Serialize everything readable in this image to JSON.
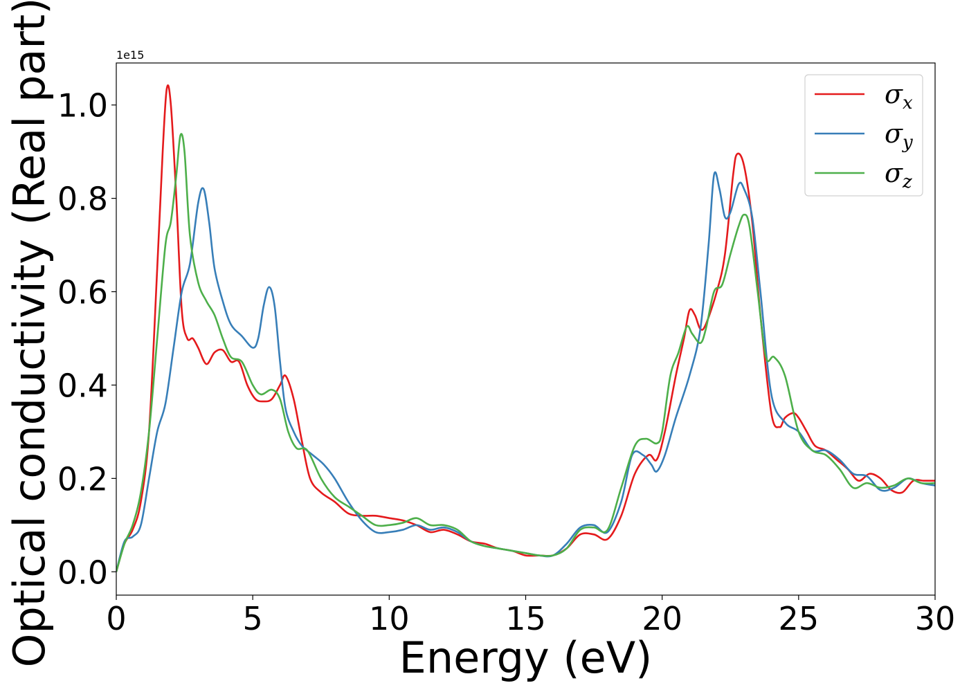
{
  "chart_data": {
    "type": "line",
    "title": "",
    "xlabel": "Energy (eV)",
    "ylabel": "Optical conductivity (Real part)",
    "y_offset_label": "1e15",
    "xlim": [
      0,
      30
    ],
    "ylim": [
      -0.05,
      1.09
    ],
    "xticks": [
      0,
      5,
      10,
      15,
      20,
      25,
      30
    ],
    "xtick_labels": [
      "0",
      "5",
      "10",
      "15",
      "20",
      "25",
      "30"
    ],
    "yticks": [
      0.0,
      0.2,
      0.4,
      0.6,
      0.8,
      1.0
    ],
    "ytick_labels": [
      "0.0",
      "0.2",
      "0.4",
      "0.6",
      "0.8",
      "1.0"
    ],
    "grid": false,
    "legend_position": "top-right",
    "series": [
      {
        "name": "σx",
        "name_base": "σ",
        "name_sub": "x",
        "color": "#e41a1c",
        "x": [
          0,
          0.3,
          0.6,
          0.9,
          1.2,
          1.5,
          1.7,
          1.85,
          2.0,
          2.2,
          2.4,
          2.6,
          2.8,
          3.0,
          3.3,
          3.6,
          3.9,
          4.2,
          4.5,
          4.8,
          5.1,
          5.4,
          5.7,
          6.0,
          6.2,
          6.5,
          6.8,
          7.1,
          7.5,
          8.0,
          8.5,
          9.0,
          9.5,
          10.0,
          10.5,
          11.0,
          11.5,
          12.0,
          12.5,
          13.0,
          13.5,
          14.0,
          14.5,
          15.0,
          15.5,
          16.0,
          16.5,
          17.0,
          17.5,
          18.0,
          18.5,
          19.0,
          19.5,
          19.8,
          20.1,
          20.5,
          20.8,
          21.0,
          21.2,
          21.4,
          21.6,
          22.0,
          22.3,
          22.6,
          22.75,
          23.0,
          23.3,
          23.6,
          24.0,
          24.3,
          24.5,
          24.8,
          25.0,
          25.3,
          25.6,
          26.0,
          26.4,
          26.8,
          27.2,
          27.6,
          28.0,
          28.4,
          28.8,
          29.2,
          29.6,
          30.0
        ],
        "y": [
          0.0,
          0.06,
          0.09,
          0.15,
          0.3,
          0.65,
          0.9,
          1.035,
          1.0,
          0.8,
          0.56,
          0.5,
          0.5,
          0.48,
          0.445,
          0.47,
          0.475,
          0.45,
          0.45,
          0.4,
          0.37,
          0.365,
          0.37,
          0.4,
          0.42,
          0.37,
          0.28,
          0.2,
          0.17,
          0.15,
          0.125,
          0.12,
          0.12,
          0.115,
          0.11,
          0.1,
          0.085,
          0.09,
          0.08,
          0.065,
          0.06,
          0.05,
          0.045,
          0.035,
          0.035,
          0.035,
          0.05,
          0.08,
          0.08,
          0.07,
          0.12,
          0.21,
          0.25,
          0.24,
          0.3,
          0.42,
          0.5,
          0.56,
          0.55,
          0.52,
          0.53,
          0.6,
          0.68,
          0.85,
          0.895,
          0.87,
          0.75,
          0.55,
          0.34,
          0.31,
          0.33,
          0.34,
          0.33,
          0.3,
          0.27,
          0.26,
          0.24,
          0.22,
          0.195,
          0.21,
          0.2,
          0.175,
          0.17,
          0.195,
          0.195,
          0.195
        ]
      },
      {
        "name": "σy",
        "name_base": "σ",
        "name_sub": "y",
        "color": "#377eb8",
        "x": [
          0,
          0.3,
          0.6,
          0.9,
          1.2,
          1.5,
          1.8,
          2.1,
          2.4,
          2.7,
          3.0,
          3.2,
          3.4,
          3.6,
          3.9,
          4.2,
          4.6,
          5.0,
          5.2,
          5.4,
          5.6,
          5.8,
          6.0,
          6.2,
          6.5,
          6.8,
          7.2,
          7.6,
          8.0,
          8.5,
          9.0,
          9.5,
          10.0,
          10.5,
          11.0,
          11.5,
          12.0,
          12.5,
          13.0,
          13.5,
          14.0,
          14.5,
          15.0,
          15.5,
          16.0,
          16.5,
          17.0,
          17.5,
          18.0,
          18.5,
          18.9,
          19.3,
          19.6,
          19.8,
          20.1,
          20.5,
          21.0,
          21.4,
          21.7,
          21.9,
          22.1,
          22.3,
          22.5,
          22.8,
          23.0,
          23.3,
          23.6,
          24.0,
          24.5,
          25.0,
          25.5,
          26.0,
          26.5,
          27.0,
          27.5,
          28.0,
          28.5,
          29.0,
          29.5,
          30.0
        ],
        "y": [
          0.0,
          0.065,
          0.075,
          0.1,
          0.2,
          0.3,
          0.36,
          0.48,
          0.6,
          0.66,
          0.79,
          0.82,
          0.75,
          0.65,
          0.58,
          0.53,
          0.505,
          0.48,
          0.5,
          0.57,
          0.61,
          0.57,
          0.45,
          0.35,
          0.3,
          0.27,
          0.25,
          0.23,
          0.2,
          0.15,
          0.11,
          0.085,
          0.085,
          0.09,
          0.1,
          0.09,
          0.095,
          0.085,
          0.065,
          0.055,
          0.05,
          0.045,
          0.04,
          0.035,
          0.035,
          0.06,
          0.095,
          0.1,
          0.085,
          0.15,
          0.25,
          0.25,
          0.23,
          0.215,
          0.25,
          0.33,
          0.42,
          0.52,
          0.7,
          0.85,
          0.82,
          0.76,
          0.77,
          0.83,
          0.82,
          0.76,
          0.6,
          0.38,
          0.32,
          0.3,
          0.26,
          0.26,
          0.24,
          0.21,
          0.205,
          0.175,
          0.18,
          0.2,
          0.19,
          0.185
        ]
      },
      {
        "name": "σz",
        "name_base": "σ",
        "name_sub": "z",
        "color": "#4daf4a",
        "x": [
          0,
          0.3,
          0.6,
          0.9,
          1.2,
          1.5,
          1.8,
          2.0,
          2.2,
          2.35,
          2.5,
          2.7,
          3.0,
          3.3,
          3.6,
          3.9,
          4.2,
          4.6,
          5.0,
          5.3,
          5.7,
          6.0,
          6.3,
          6.6,
          7.0,
          7.5,
          8.0,
          8.5,
          9.0,
          9.5,
          10.0,
          10.5,
          11.0,
          11.5,
          12.0,
          12.5,
          13.0,
          13.5,
          14.0,
          14.5,
          15.0,
          15.5,
          16.0,
          16.5,
          17.0,
          17.5,
          18.0,
          18.5,
          19.0,
          19.4,
          19.8,
          20.0,
          20.3,
          20.6,
          20.9,
          21.1,
          21.4,
          21.6,
          21.9,
          22.2,
          22.5,
          22.8,
          23.0,
          23.2,
          23.5,
          23.8,
          24.1,
          24.5,
          25.0,
          25.5,
          26.0,
          26.5,
          27.0,
          27.5,
          28.0,
          28.5,
          29.0,
          29.5,
          30.0
        ],
        "y": [
          0.0,
          0.06,
          0.1,
          0.17,
          0.3,
          0.5,
          0.7,
          0.75,
          0.85,
          0.935,
          0.9,
          0.72,
          0.62,
          0.58,
          0.55,
          0.5,
          0.46,
          0.45,
          0.4,
          0.38,
          0.39,
          0.37,
          0.3,
          0.265,
          0.26,
          0.2,
          0.16,
          0.14,
          0.12,
          0.1,
          0.1,
          0.105,
          0.115,
          0.1,
          0.1,
          0.09,
          0.065,
          0.055,
          0.05,
          0.045,
          0.04,
          0.035,
          0.035,
          0.05,
          0.09,
          0.095,
          0.09,
          0.18,
          0.27,
          0.285,
          0.275,
          0.3,
          0.42,
          0.47,
          0.525,
          0.51,
          0.49,
          0.52,
          0.6,
          0.615,
          0.68,
          0.74,
          0.765,
          0.74,
          0.6,
          0.46,
          0.46,
          0.42,
          0.3,
          0.26,
          0.25,
          0.22,
          0.18,
          0.19,
          0.18,
          0.185,
          0.2,
          0.19,
          0.19
        ]
      }
    ]
  }
}
